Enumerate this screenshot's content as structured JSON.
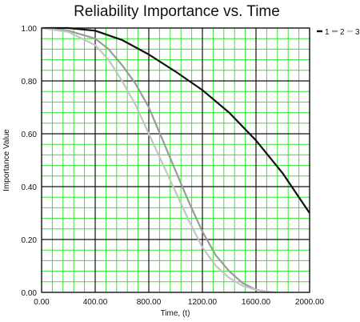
{
  "chart_data": {
    "type": "line",
    "title": "Reliability Importance vs. Time",
    "xlabel": "Time, (t)",
    "ylabel": "Importance Value",
    "xlim": [
      0,
      2000
    ],
    "ylim": [
      0,
      1
    ],
    "x_ticks": [
      "0.00",
      "400.00",
      "800.00",
      "1200.00",
      "1600.00",
      "2000.00"
    ],
    "y_ticks": [
      "0.00",
      "0.20",
      "0.40",
      "0.60",
      "0.80",
      "1.00"
    ],
    "grid": true,
    "legend_position": "top-right",
    "legend_labels": [
      "1",
      "2",
      "3"
    ],
    "series": [
      {
        "name": "1",
        "color": "#111111",
        "x": [
          0,
          200,
          400,
          600,
          800,
          1000,
          1200,
          1400,
          1600,
          1800,
          2000
        ],
        "y": [
          1.0,
          1.0,
          0.99,
          0.955,
          0.9,
          0.835,
          0.765,
          0.68,
          0.575,
          0.45,
          0.3
        ]
      },
      {
        "name": "2",
        "color": "#9a9a9a",
        "x": [
          0,
          200,
          400,
          500,
          600,
          700,
          800,
          900,
          1000,
          1100,
          1200,
          1300,
          1400,
          1500,
          1600,
          1700
        ],
        "y": [
          1.0,
          0.99,
          0.96,
          0.92,
          0.86,
          0.79,
          0.7,
          0.58,
          0.46,
          0.34,
          0.23,
          0.14,
          0.08,
          0.035,
          0.01,
          0.0
        ]
      },
      {
        "name": "3",
        "color": "#c4c4c4",
        "x": [
          0,
          200,
          400,
          500,
          600,
          700,
          800,
          900,
          1000,
          1100,
          1200,
          1300,
          1400,
          1500,
          1600,
          1700,
          1750
        ],
        "y": [
          1.0,
          0.985,
          0.935,
          0.88,
          0.8,
          0.71,
          0.6,
          0.49,
          0.38,
          0.27,
          0.17,
          0.1,
          0.055,
          0.025,
          0.01,
          0.002,
          0.0
        ]
      }
    ]
  }
}
